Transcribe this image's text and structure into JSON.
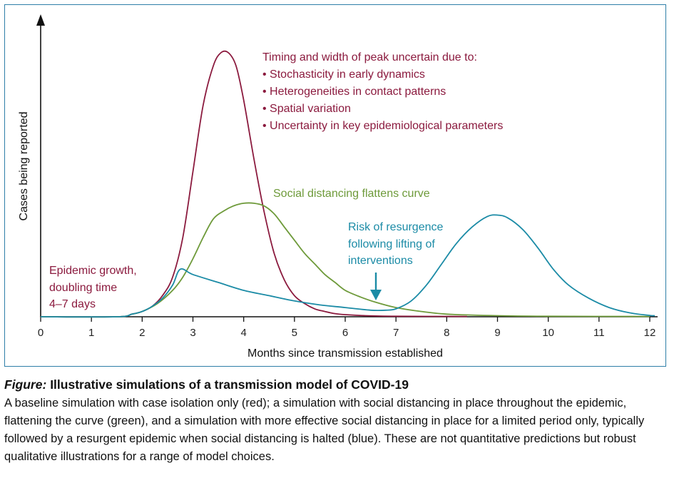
{
  "chart_data": {
    "type": "line",
    "xlabel": "Months since transmission established",
    "ylabel": "Cases being reported",
    "xlim": [
      0,
      12.1
    ],
    "ylim": [
      0,
      1.05
    ],
    "x_ticks": [
      0,
      1,
      2,
      3,
      4,
      5,
      6,
      7,
      8,
      9,
      10,
      11,
      12
    ],
    "grid": false,
    "series": [
      {
        "color": "#8b1a3e",
        "points": [
          [
            0,
            0
          ],
          [
            1.5,
            0
          ],
          [
            1.8,
            0.01
          ],
          [
            2.0,
            0.02
          ],
          [
            2.2,
            0.04
          ],
          [
            2.4,
            0.08
          ],
          [
            2.6,
            0.15
          ],
          [
            2.8,
            0.3
          ],
          [
            3.0,
            0.55
          ],
          [
            3.2,
            0.8
          ],
          [
            3.4,
            0.95
          ],
          [
            3.55,
            1.0
          ],
          [
            3.7,
            1.0
          ],
          [
            3.85,
            0.95
          ],
          [
            4.0,
            0.82
          ],
          [
            4.2,
            0.6
          ],
          [
            4.4,
            0.4
          ],
          [
            4.6,
            0.24
          ],
          [
            4.8,
            0.14
          ],
          [
            5.0,
            0.08
          ],
          [
            5.2,
            0.05
          ],
          [
            5.4,
            0.03
          ],
          [
            5.6,
            0.02
          ],
          [
            5.8,
            0.012
          ],
          [
            6.0,
            0.008
          ],
          [
            6.4,
            0.004
          ],
          [
            7.0,
            0.002
          ],
          [
            8.4,
            0.001
          ]
        ]
      },
      {
        "color": "#6e9a3a",
        "points": [
          [
            0,
            0
          ],
          [
            1.5,
            0
          ],
          [
            1.8,
            0.01
          ],
          [
            2.0,
            0.02
          ],
          [
            2.3,
            0.05
          ],
          [
            2.6,
            0.1
          ],
          [
            2.8,
            0.15
          ],
          [
            3.0,
            0.22
          ],
          [
            3.2,
            0.3
          ],
          [
            3.4,
            0.37
          ],
          [
            3.6,
            0.4
          ],
          [
            3.8,
            0.42
          ],
          [
            4.0,
            0.43
          ],
          [
            4.2,
            0.43
          ],
          [
            4.4,
            0.42
          ],
          [
            4.6,
            0.39
          ],
          [
            4.8,
            0.34
          ],
          [
            5.0,
            0.29
          ],
          [
            5.2,
            0.24
          ],
          [
            5.4,
            0.2
          ],
          [
            5.6,
            0.16
          ],
          [
            5.8,
            0.13
          ],
          [
            6.0,
            0.1
          ],
          [
            6.3,
            0.075
          ],
          [
            6.6,
            0.055
          ],
          [
            7.0,
            0.035
          ],
          [
            7.5,
            0.02
          ],
          [
            8.0,
            0.01
          ],
          [
            9.0,
            0.004
          ],
          [
            10.0,
            0.002
          ],
          [
            12.0,
            0.001
          ]
        ]
      },
      {
        "color": "#1b8ba6",
        "points": [
          [
            0,
            0
          ],
          [
            1.5,
            0
          ],
          [
            1.8,
            0.01
          ],
          [
            2.0,
            0.02
          ],
          [
            2.2,
            0.04
          ],
          [
            2.4,
            0.07
          ],
          [
            2.6,
            0.12
          ],
          [
            2.75,
            0.18
          ],
          [
            3.0,
            0.16
          ],
          [
            3.5,
            0.13
          ],
          [
            4.0,
            0.1
          ],
          [
            4.5,
            0.08
          ],
          [
            5.0,
            0.06
          ],
          [
            5.5,
            0.045
          ],
          [
            6.0,
            0.035
          ],
          [
            6.5,
            0.025
          ],
          [
            6.8,
            0.025
          ],
          [
            7.0,
            0.03
          ],
          [
            7.3,
            0.06
          ],
          [
            7.6,
            0.12
          ],
          [
            7.9,
            0.2
          ],
          [
            8.2,
            0.28
          ],
          [
            8.5,
            0.34
          ],
          [
            8.8,
            0.38
          ],
          [
            9.0,
            0.385
          ],
          [
            9.2,
            0.375
          ],
          [
            9.5,
            0.33
          ],
          [
            9.8,
            0.26
          ],
          [
            10.1,
            0.18
          ],
          [
            10.4,
            0.12
          ],
          [
            10.8,
            0.07
          ],
          [
            11.2,
            0.035
          ],
          [
            11.6,
            0.015
          ],
          [
            12.0,
            0.005
          ],
          [
            12.1,
            0.004
          ]
        ]
      }
    ],
    "annotations": {
      "peak_title": "Timing and width of peak uncertain due to:",
      "peak_items": [
        "• Stochasticity in early dynamics",
        "• Heterogeneities in contact patterns",
        "• Spatial variation",
        "• Uncertainty in key epidemiological parameters"
      ],
      "flatten": "Social distancing flattens curve",
      "resurgence": [
        "Risk of resurgence",
        "following lifting of",
        "interventions"
      ],
      "growth": [
        "Epidemic growth,",
        "doubling time",
        "4–7 days"
      ]
    }
  },
  "caption": {
    "lead": "Figure:",
    "title": "Illustrative simulations of a transmission model of COVID-19",
    "body": "A baseline simulation with case isolation only (red); a simulation with social distancing in place throughout the epidemic, flattening the curve (green), and a simulation with more effective social distancing in place for a limited period only, typically followed by a resurgent epidemic when social distancing is halted (blue). These are not quantitative predictions but robust qualitative illustrations for a range of model choices."
  },
  "colors": {
    "frame": "#2f7fa8",
    "red": "#8b1a3e",
    "green": "#6e9a3a",
    "blue": "#1b8ba6"
  }
}
